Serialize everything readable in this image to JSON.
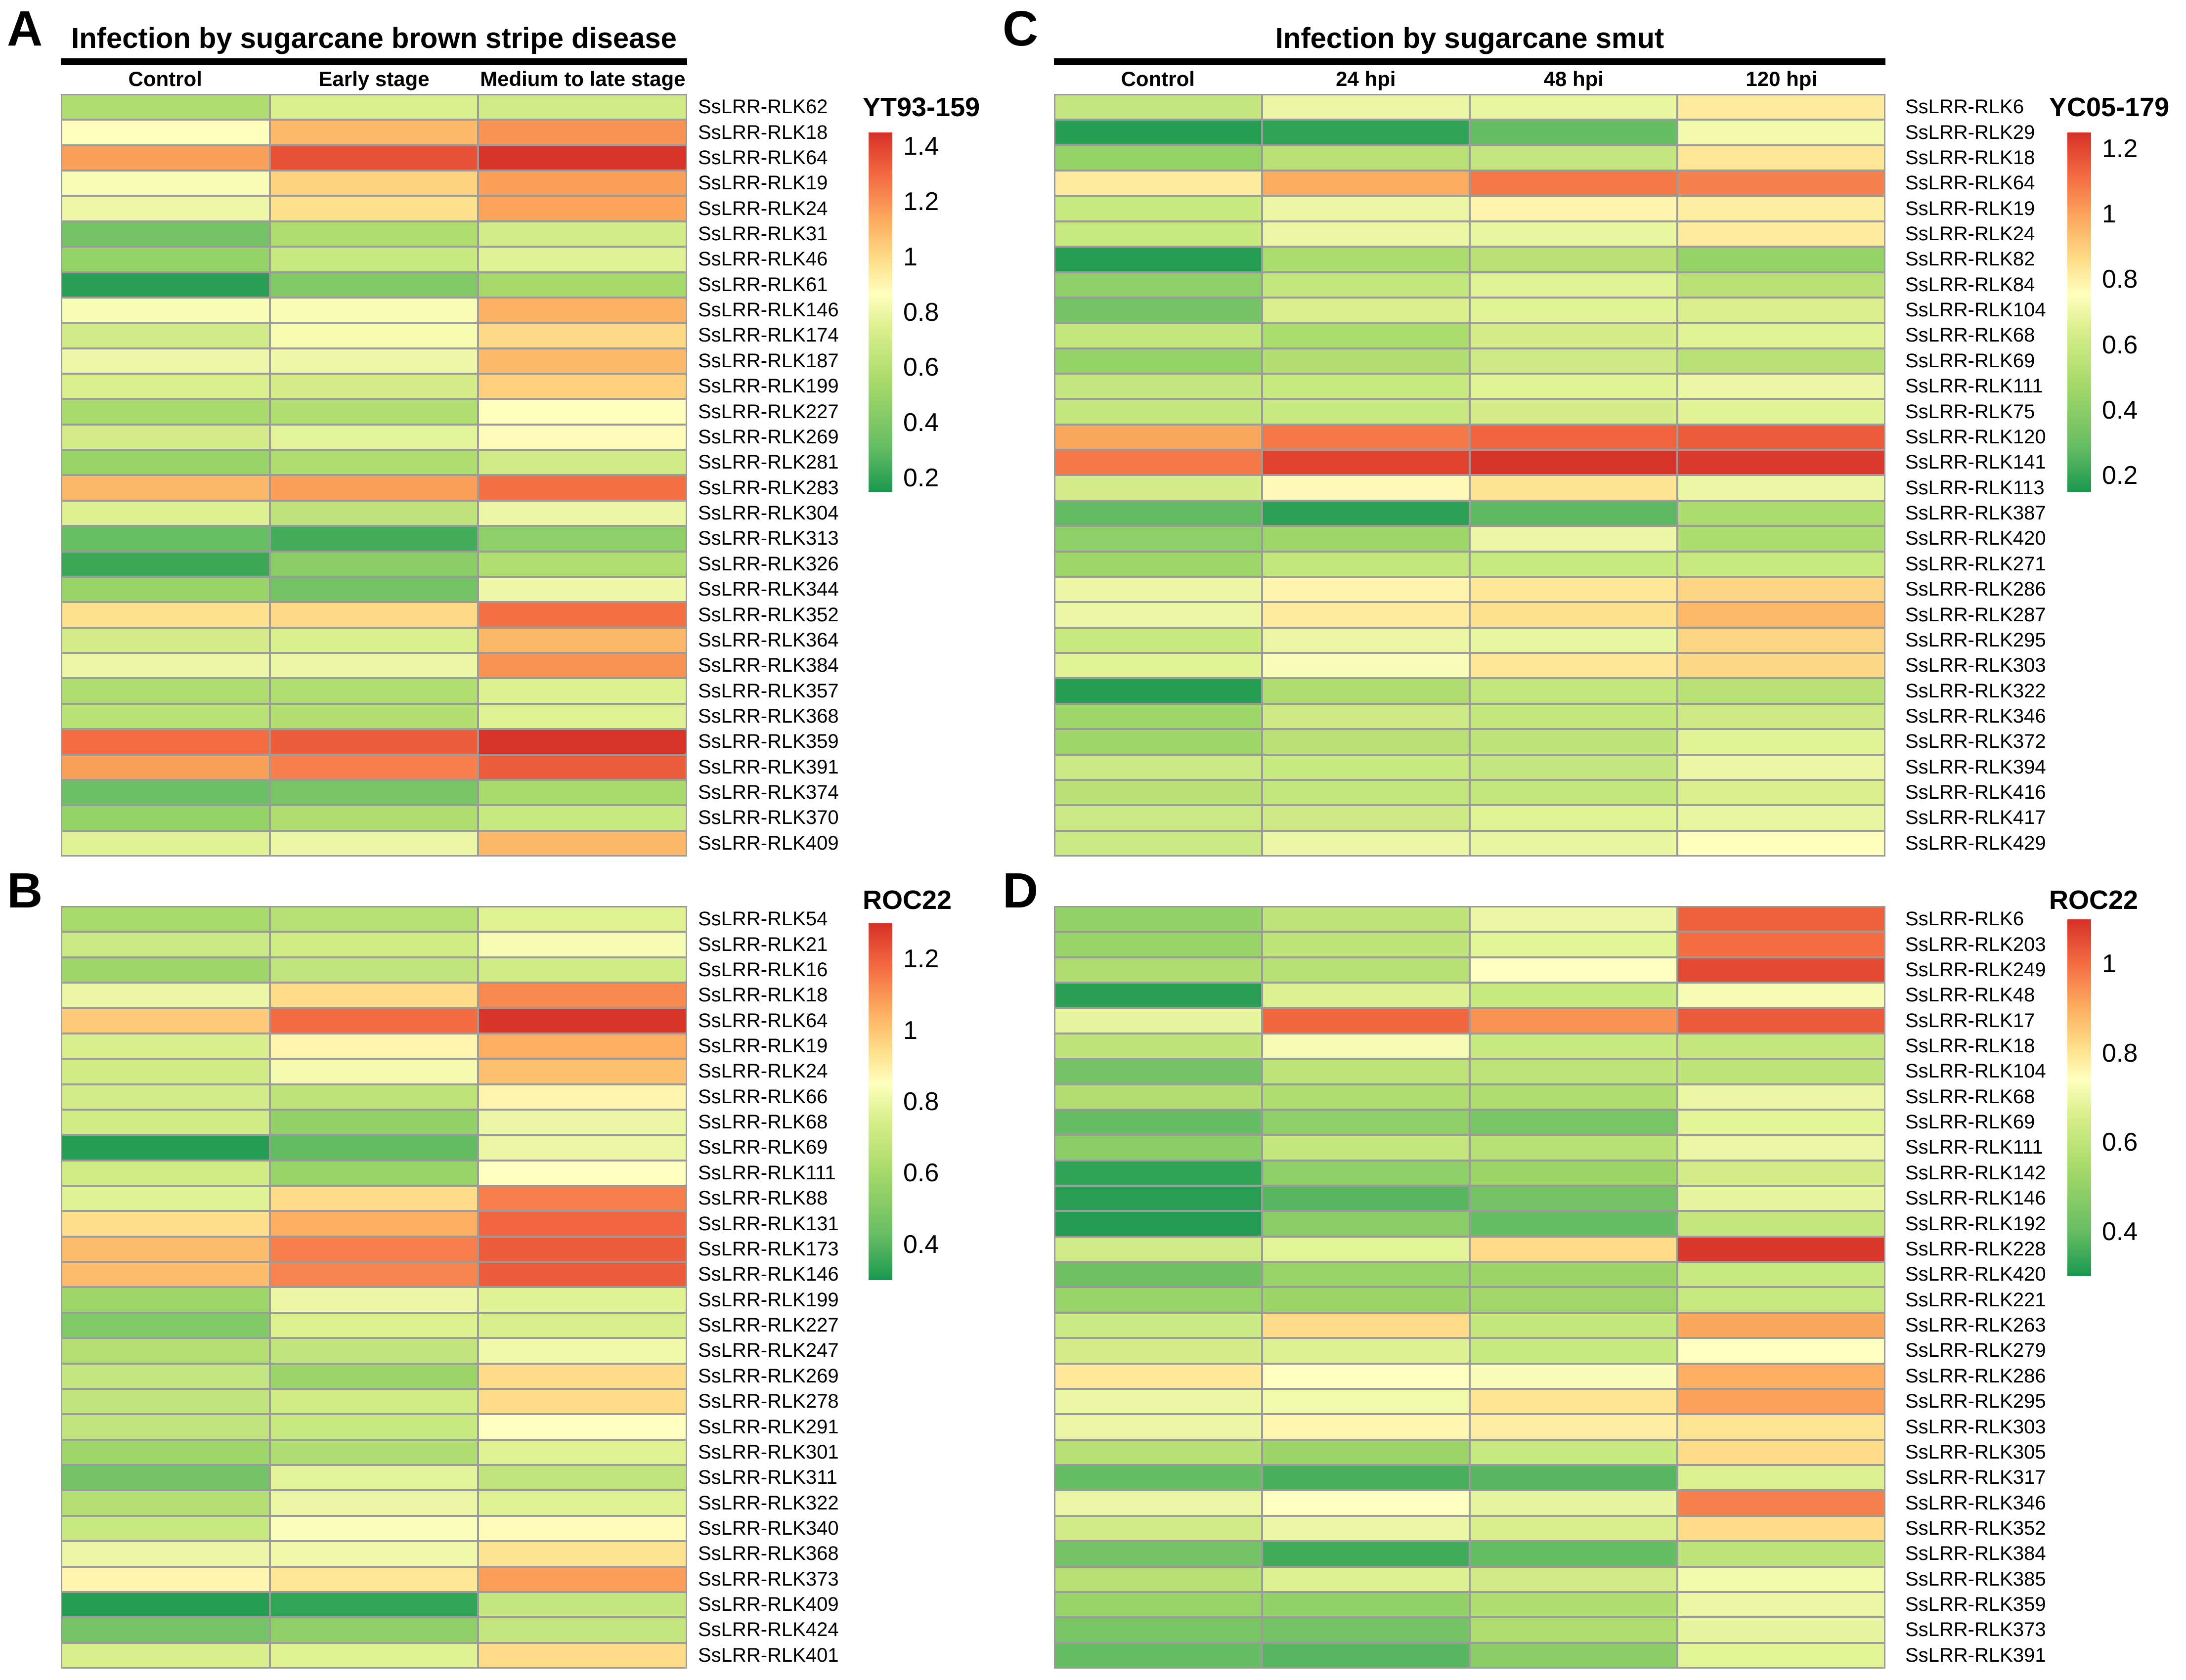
{
  "page": {
    "background": "#ffffff"
  },
  "palette": {
    "description": "green-yellow-red heatmap scale (low to high)",
    "stops": [
      {
        "t": 0.0,
        "color": "#1a9850"
      },
      {
        "t": 0.125,
        "color": "#66bd63"
      },
      {
        "t": 0.3,
        "color": "#a6d96a"
      },
      {
        "t": 0.45,
        "color": "#d9ef8b"
      },
      {
        "t": 0.55,
        "color": "#ffffbf"
      },
      {
        "t": 0.64,
        "color": "#fee08b"
      },
      {
        "t": 0.75,
        "color": "#fdae61"
      },
      {
        "t": 0.875,
        "color": "#f46d43"
      },
      {
        "t": 1.0,
        "color": "#d73027"
      }
    ],
    "grid_line_color": "#9b9b9b",
    "title_rule_color": "#000000"
  },
  "chart_data": [
    {
      "type": "heatmap",
      "panel_label": "A",
      "title": "Infection by sugarcane brown stripe disease",
      "legend_title": "YT93-159",
      "columns": [
        "Control",
        "Early stage",
        "Medium to late stage"
      ],
      "colorbar_ticks": [
        "1.4",
        "1.2",
        "1",
        "0.8",
        "0.6",
        "0.4",
        "0.2"
      ],
      "vmin": 0.15,
      "vmax": 1.45,
      "rows": [
        "SsLRR-RLK62",
        "SsLRR-RLK18",
        "SsLRR-RLK64",
        "SsLRR-RLK19",
        "SsLRR-RLK24",
        "SsLRR-RLK31",
        "SsLRR-RLK46",
        "SsLRR-RLK61",
        "SsLRR-RLK146",
        "SsLRR-RLK174",
        "SsLRR-RLK187",
        "SsLRR-RLK199",
        "SsLRR-RLK227",
        "SsLRR-RLK269",
        "SsLRR-RLK281",
        "SsLRR-RLK283",
        "SsLRR-RLK304",
        "SsLRR-RLK313",
        "SsLRR-RLK326",
        "SsLRR-RLK344",
        "SsLRR-RLK352",
        "SsLRR-RLK364",
        "SsLRR-RLK384",
        "SsLRR-RLK357",
        "SsLRR-RLK368",
        "SsLRR-RLK359",
        "SsLRR-RLK391",
        "SsLRR-RLK374",
        "SsLRR-RLK370",
        "SsLRR-RLK409"
      ],
      "values": [
        [
          0.57,
          0.74,
          0.7
        ],
        [
          0.87,
          1.09,
          1.19
        ],
        [
          1.16,
          1.36,
          1.44
        ],
        [
          0.84,
          1.02,
          1.16
        ],
        [
          0.81,
          0.98,
          1.15
        ],
        [
          0.36,
          0.57,
          0.71
        ],
        [
          0.48,
          0.67,
          0.76
        ],
        [
          0.18,
          0.41,
          0.54
        ],
        [
          0.84,
          0.84,
          1.11
        ],
        [
          0.7,
          0.83,
          1.0
        ],
        [
          0.81,
          0.81,
          1.09
        ],
        [
          0.74,
          0.72,
          1.03
        ],
        [
          0.55,
          0.58,
          0.87
        ],
        [
          0.72,
          0.77,
          0.88
        ],
        [
          0.49,
          0.57,
          0.7
        ],
        [
          1.1,
          1.16,
          1.28
        ],
        [
          0.75,
          0.64,
          0.8
        ],
        [
          0.32,
          0.24,
          0.46
        ],
        [
          0.22,
          0.44,
          0.58
        ],
        [
          0.49,
          0.36,
          0.81
        ],
        [
          0.98,
          1.0,
          1.28
        ],
        [
          0.72,
          0.74,
          1.1
        ],
        [
          0.8,
          0.8,
          1.19
        ],
        [
          0.57,
          0.58,
          0.75
        ],
        [
          0.61,
          0.59,
          0.76
        ],
        [
          1.29,
          1.33,
          1.44
        ],
        [
          1.16,
          1.24,
          1.33
        ],
        [
          0.33,
          0.38,
          0.55
        ],
        [
          0.48,
          0.57,
          0.67
        ],
        [
          0.76,
          0.8,
          1.1
        ]
      ]
    },
    {
      "type": "heatmap",
      "panel_label": "B",
      "title": "",
      "legend_title": "ROC22",
      "columns": [
        "Control",
        "Early stage",
        "Medium to late stage"
      ],
      "colorbar_ticks": [
        "1.2",
        "1",
        "0.8",
        "0.6",
        "0.4"
      ],
      "vmin": 0.3,
      "vmax": 1.3,
      "rows": [
        "SsLRR-RLK54",
        "SsLRR-RLK21",
        "SsLRR-RLK16",
        "SsLRR-RLK18",
        "SsLRR-RLK64",
        "SsLRR-RLK19",
        "SsLRR-RLK24",
        "SsLRR-RLK66",
        "SsLRR-RLK68",
        "SsLRR-RLK69",
        "SsLRR-RLK111",
        "SsLRR-RLK88",
        "SsLRR-RLK131",
        "SsLRR-RLK173",
        "SsLRR-RLK146",
        "SsLRR-RLK199",
        "SsLRR-RLK227",
        "SsLRR-RLK247",
        "SsLRR-RLK269",
        "SsLRR-RLK278",
        "SsLRR-RLK291",
        "SsLRR-RLK301",
        "SsLRR-RLK311",
        "SsLRR-RLK322",
        "SsLRR-RLK340",
        "SsLRR-RLK368",
        "SsLRR-RLK373",
        "SsLRR-RLK409",
        "SsLRR-RLK424",
        "SsLRR-RLK401"
      ],
      "values": [
        [
          0.61,
          0.65,
          0.77
        ],
        [
          0.71,
          0.72,
          0.83
        ],
        [
          0.58,
          0.68,
          0.72
        ],
        [
          0.8,
          0.95,
          1.12
        ],
        [
          0.99,
          1.18,
          1.29
        ],
        [
          0.75,
          0.88,
          1.05
        ],
        [
          0.72,
          0.82,
          1.01
        ],
        [
          0.73,
          0.67,
          0.88
        ],
        [
          0.72,
          0.55,
          0.8
        ],
        [
          0.32,
          0.42,
          0.8
        ],
        [
          0.72,
          0.56,
          0.85
        ],
        [
          0.77,
          0.95,
          1.14
        ],
        [
          0.94,
          1.05,
          1.19
        ],
        [
          1.02,
          1.14,
          1.21
        ],
        [
          1.02,
          1.13,
          1.21
        ],
        [
          0.58,
          0.8,
          0.77
        ],
        [
          0.5,
          0.76,
          0.75
        ],
        [
          0.64,
          0.68,
          0.81
        ],
        [
          0.69,
          0.57,
          0.95
        ],
        [
          0.68,
          0.72,
          0.95
        ],
        [
          0.68,
          0.7,
          0.85
        ],
        [
          0.58,
          0.63,
          0.77
        ],
        [
          0.46,
          0.78,
          0.68
        ],
        [
          0.64,
          0.8,
          0.77
        ],
        [
          0.7,
          0.84,
          0.86
        ],
        [
          0.8,
          0.81,
          0.93
        ],
        [
          0.88,
          0.92,
          1.08
        ],
        [
          0.32,
          0.34,
          0.69
        ],
        [
          0.47,
          0.54,
          0.69
        ],
        [
          0.75,
          0.77,
          0.95
        ]
      ]
    },
    {
      "type": "heatmap",
      "panel_label": "C",
      "title": "Infection by sugarcane smut",
      "legend_title": "YC05-179",
      "columns": [
        "Control",
        "24 hpi",
        "48 hpi",
        "120 hpi"
      ],
      "colorbar_ticks": [
        "1.2",
        "1",
        "0.8",
        "0.6",
        "0.4",
        "0.2"
      ],
      "vmin": 0.15,
      "vmax": 1.25,
      "rows": [
        "SsLRR-RLK6",
        "SsLRR-RLK29",
        "SsLRR-RLK18",
        "SsLRR-RLK64",
        "SsLRR-RLK19",
        "SsLRR-RLK24",
        "SsLRR-RLK82",
        "SsLRR-RLK84",
        "SsLRR-RLK104",
        "SsLRR-RLK68",
        "SsLRR-RLK69",
        "SsLRR-RLK111",
        "SsLRR-RLK75",
        "SsLRR-RLK120",
        "SsLRR-RLK141",
        "SsLRR-RLK113",
        "SsLRR-RLK387",
        "SsLRR-RLK420",
        "SsLRR-RLK271",
        "SsLRR-RLK286",
        "SsLRR-RLK287",
        "SsLRR-RLK295",
        "SsLRR-RLK303",
        "SsLRR-RLK322",
        "SsLRR-RLK346",
        "SsLRR-RLK372",
        "SsLRR-RLK394",
        "SsLRR-RLK416",
        "SsLRR-RLK417",
        "SsLRR-RLK429"
      ],
      "values": [
        [
          0.58,
          0.7,
          0.69,
          0.82
        ],
        [
          0.17,
          0.19,
          0.29,
          0.72
        ],
        [
          0.43,
          0.54,
          0.58,
          0.83
        ],
        [
          0.82,
          0.98,
          1.09,
          1.07
        ],
        [
          0.59,
          0.7,
          0.79,
          0.81
        ],
        [
          0.59,
          0.7,
          0.69,
          0.82
        ],
        [
          0.17,
          0.5,
          0.54,
          0.43
        ],
        [
          0.41,
          0.57,
          0.67,
          0.54
        ],
        [
          0.33,
          0.65,
          0.67,
          0.65
        ],
        [
          0.57,
          0.5,
          0.63,
          0.67
        ],
        [
          0.43,
          0.52,
          0.61,
          0.54
        ],
        [
          0.58,
          0.59,
          0.67,
          0.7
        ],
        [
          0.57,
          0.59,
          0.63,
          0.67
        ],
        [
          0.99,
          1.09,
          1.13,
          1.15
        ],
        [
          1.09,
          1.21,
          1.24,
          1.23
        ],
        [
          0.63,
          0.77,
          0.84,
          0.7
        ],
        [
          0.28,
          0.18,
          0.27,
          0.5
        ],
        [
          0.41,
          0.46,
          0.7,
          0.5
        ],
        [
          0.46,
          0.57,
          0.59,
          0.59
        ],
        [
          0.7,
          0.79,
          0.83,
          0.88
        ],
        [
          0.7,
          0.82,
          0.85,
          0.95
        ],
        [
          0.59,
          0.7,
          0.69,
          0.88
        ],
        [
          0.67,
          0.74,
          0.83,
          0.87
        ],
        [
          0.17,
          0.51,
          0.57,
          0.54
        ],
        [
          0.46,
          0.61,
          0.57,
          0.61
        ],
        [
          0.46,
          0.54,
          0.56,
          0.67
        ],
        [
          0.6,
          0.59,
          0.58,
          0.7
        ],
        [
          0.54,
          0.57,
          0.57,
          0.65
        ],
        [
          0.6,
          0.61,
          0.67,
          0.69
        ],
        [
          0.6,
          0.7,
          0.69,
          0.76
        ]
      ]
    },
    {
      "type": "heatmap",
      "panel_label": "D",
      "title": "",
      "legend_title": "ROC22",
      "columns": [
        "Control",
        "24 hpi",
        "48 hpi",
        "120 hpi"
      ],
      "colorbar_ticks": [
        "1",
        "0.8",
        "0.6",
        "0.4"
      ],
      "vmin": 0.3,
      "vmax": 1.1,
      "rows": [
        "SsLRR-RLK6",
        "SsLRR-RLK203",
        "SsLRR-RLK249",
        "SsLRR-RLK48",
        "SsLRR-RLK17",
        "SsLRR-RLK18",
        "SsLRR-RLK104",
        "SsLRR-RLK68",
        "SsLRR-RLK69",
        "SsLRR-RLK111",
        "SsLRR-RLK142",
        "SsLRR-RLK146",
        "SsLRR-RLK192",
        "SsLRR-RLK228",
        "SsLRR-RLK420",
        "SsLRR-RLK221",
        "SsLRR-RLK263",
        "SsLRR-RLK279",
        "SsLRR-RLK286",
        "SsLRR-RLK295",
        "SsLRR-RLK303",
        "SsLRR-RLK305",
        "SsLRR-RLK317",
        "SsLRR-RLK346",
        "SsLRR-RLK352",
        "SsLRR-RLK384",
        "SsLRR-RLK385",
        "SsLRR-RLK359",
        "SsLRR-RLK373",
        "SsLRR-RLK391"
      ],
      "values": [
        [
          0.5,
          0.6,
          0.7,
          1.02
        ],
        [
          0.51,
          0.6,
          0.68,
          1.0
        ],
        [
          0.56,
          0.58,
          0.74,
          1.06
        ],
        [
          0.32,
          0.67,
          0.62,
          0.72
        ],
        [
          0.69,
          1.01,
          0.94,
          1.03
        ],
        [
          0.6,
          0.72,
          0.62,
          0.61
        ],
        [
          0.43,
          0.6,
          0.6,
          0.6
        ],
        [
          0.57,
          0.56,
          0.56,
          0.7
        ],
        [
          0.4,
          0.49,
          0.44,
          0.68
        ],
        [
          0.48,
          0.61,
          0.58,
          0.7
        ],
        [
          0.33,
          0.49,
          0.52,
          0.65
        ],
        [
          0.32,
          0.38,
          0.43,
          0.69
        ],
        [
          0.31,
          0.48,
          0.4,
          0.61
        ],
        [
          0.64,
          0.68,
          0.82,
          1.09
        ],
        [
          0.42,
          0.51,
          0.52,
          0.62
        ],
        [
          0.51,
          0.52,
          0.53,
          0.62
        ],
        [
          0.63,
          0.82,
          0.61,
          0.91
        ],
        [
          0.65,
          0.67,
          0.62,
          0.74
        ],
        [
          0.79,
          0.74,
          0.73,
          0.9
        ],
        [
          0.7,
          0.71,
          0.8,
          0.92
        ],
        [
          0.7,
          0.76,
          0.78,
          0.8
        ],
        [
          0.58,
          0.52,
          0.62,
          0.82
        ],
        [
          0.4,
          0.36,
          0.38,
          0.67
        ],
        [
          0.7,
          0.74,
          0.69,
          0.97
        ],
        [
          0.64,
          0.7,
          0.66,
          0.82
        ],
        [
          0.43,
          0.35,
          0.4,
          0.6
        ],
        [
          0.58,
          0.67,
          0.64,
          0.71
        ],
        [
          0.51,
          0.5,
          0.56,
          0.7
        ],
        [
          0.44,
          0.43,
          0.56,
          0.69
        ],
        [
          0.4,
          0.38,
          0.48,
          0.68
        ]
      ]
    }
  ]
}
